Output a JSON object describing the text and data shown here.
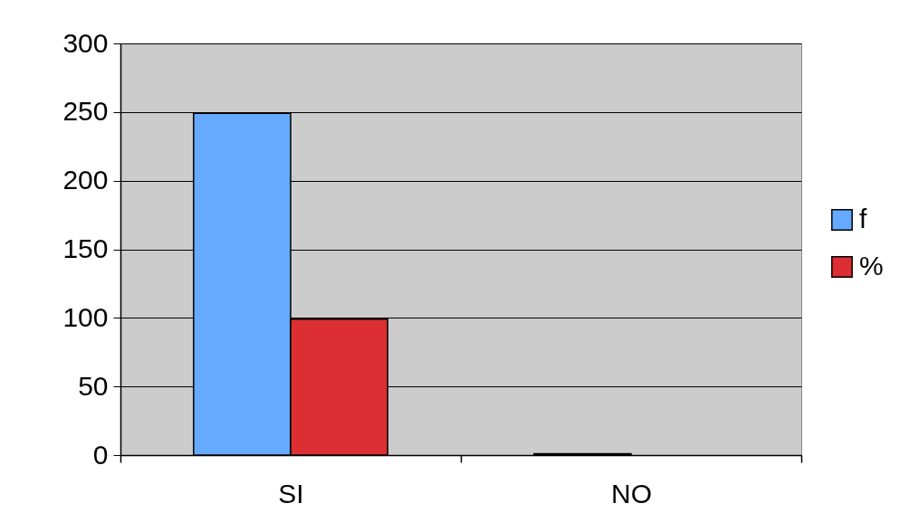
{
  "chart_data": {
    "type": "bar",
    "categories": [
      "SI",
      "NO"
    ],
    "series": [
      {
        "name": "f",
        "color": "#66aaff",
        "values": [
          249,
          1
        ]
      },
      {
        "name": "%",
        "color": "#dd2e33",
        "values": [
          99,
          null
        ]
      }
    ],
    "ylim": [
      0,
      300
    ],
    "yticks": [
      0,
      50,
      100,
      150,
      200,
      250,
      300
    ],
    "grid": "y",
    "legend": "right"
  }
}
